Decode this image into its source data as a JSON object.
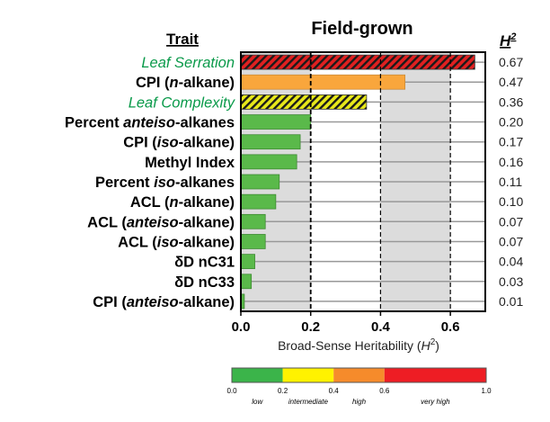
{
  "chart_data": {
    "type": "bar",
    "orientation": "horizontal",
    "title": "Field-grown",
    "trait_header": "Trait",
    "value_header": "H",
    "value_header_sup": "2",
    "xlabel": "Broad-Sense Heritability (",
    "xlabel_italic": "H",
    "xlabel_sup": "2",
    "xlabel_end": ")",
    "xlim": [
      0,
      0.7
    ],
    "xticks": [
      0.0,
      0.2,
      0.4,
      0.6
    ],
    "xtick_labels": [
      "0.0",
      "0.2",
      "0.4",
      "0.6"
    ],
    "grid": "vertical dashed at 0.2, 0.4, 0.6; alternating shaded bands",
    "categories": [
      {
        "parts": [
          {
            "t": "Leaf Serration",
            "i": true
          }
        ],
        "green": true
      },
      {
        "parts": [
          {
            "t": "CPI (",
            "i": false
          },
          {
            "t": "n",
            "i": true
          },
          {
            "t": "-alkane)",
            "i": false
          }
        ],
        "green": false
      },
      {
        "parts": [
          {
            "t": "Leaf Complexity",
            "i": true
          }
        ],
        "green": true
      },
      {
        "parts": [
          {
            "t": "Percent ",
            "i": false
          },
          {
            "t": "anteiso",
            "i": true
          },
          {
            "t": "-alkanes",
            "i": false
          }
        ],
        "green": false
      },
      {
        "parts": [
          {
            "t": "CPI (",
            "i": false
          },
          {
            "t": "iso",
            "i": true
          },
          {
            "t": "-alkane)",
            "i": false
          }
        ],
        "green": false
      },
      {
        "parts": [
          {
            "t": "Methyl Index",
            "i": false
          }
        ],
        "green": false
      },
      {
        "parts": [
          {
            "t": "Percent ",
            "i": false
          },
          {
            "t": "iso",
            "i": true
          },
          {
            "t": "-alkanes",
            "i": false
          }
        ],
        "green": false
      },
      {
        "parts": [
          {
            "t": "ACL (",
            "i": false
          },
          {
            "t": "n",
            "i": true
          },
          {
            "t": "-alkane)",
            "i": false
          }
        ],
        "green": false
      },
      {
        "parts": [
          {
            "t": "ACL (",
            "i": false
          },
          {
            "t": "anteiso",
            "i": true
          },
          {
            "t": "-alkane)",
            "i": false
          }
        ],
        "green": false
      },
      {
        "parts": [
          {
            "t": "ACL (",
            "i": false
          },
          {
            "t": "iso",
            "i": true
          },
          {
            "t": "-alkane)",
            "i": false
          }
        ],
        "green": false
      },
      {
        "parts": [
          {
            "t": "δD nC31",
            "i": false
          }
        ],
        "green": false
      },
      {
        "parts": [
          {
            "t": "δD nC33",
            "i": false
          }
        ],
        "green": false
      },
      {
        "parts": [
          {
            "t": "CPI (",
            "i": false
          },
          {
            "t": "anteiso",
            "i": true
          },
          {
            "t": "-alkane)",
            "i": false
          }
        ],
        "green": false
      }
    ],
    "values": [
      0.67,
      0.47,
      0.36,
      0.2,
      0.17,
      0.16,
      0.11,
      0.1,
      0.07,
      0.07,
      0.04,
      0.03,
      0.01
    ],
    "value_labels": [
      "0.67",
      "0.47",
      "0.36",
      "0.20",
      "0.17",
      "0.16",
      "0.11",
      "0.10",
      "0.07",
      "0.07",
      "0.04",
      "0.03",
      "0.01"
    ],
    "bar_styles": [
      "hatched-red",
      "orange",
      "hatched-yellow",
      "green",
      "green",
      "green",
      "green",
      "green",
      "green",
      "green",
      "green",
      "green",
      "green"
    ],
    "colors": {
      "green": "#5ab94a",
      "orange": "#f9a63c",
      "red": "#e02020",
      "yellow": "#e8e81a",
      "trait_green": "#0a9a4a",
      "band": "#dcdcdc",
      "rowline": "#999999"
    },
    "legend": {
      "placement": "bottom",
      "segments": [
        {
          "from": 0.0,
          "to": 0.2,
          "color": "#3bb44a",
          "label": "low"
        },
        {
          "from": 0.2,
          "to": 0.4,
          "color": "#fff200",
          "label": "intermediate"
        },
        {
          "from": 0.4,
          "to": 0.6,
          "color": "#f68b2b",
          "label": "high"
        },
        {
          "from": 0.6,
          "to": 1.0,
          "color": "#ee1d24",
          "label": "very high"
        }
      ],
      "tick_labels": [
        "0.0",
        "0.2",
        "0.4",
        "0.6",
        "1.0"
      ],
      "ticks": [
        0.0,
        0.2,
        0.4,
        0.6,
        1.0
      ]
    }
  }
}
